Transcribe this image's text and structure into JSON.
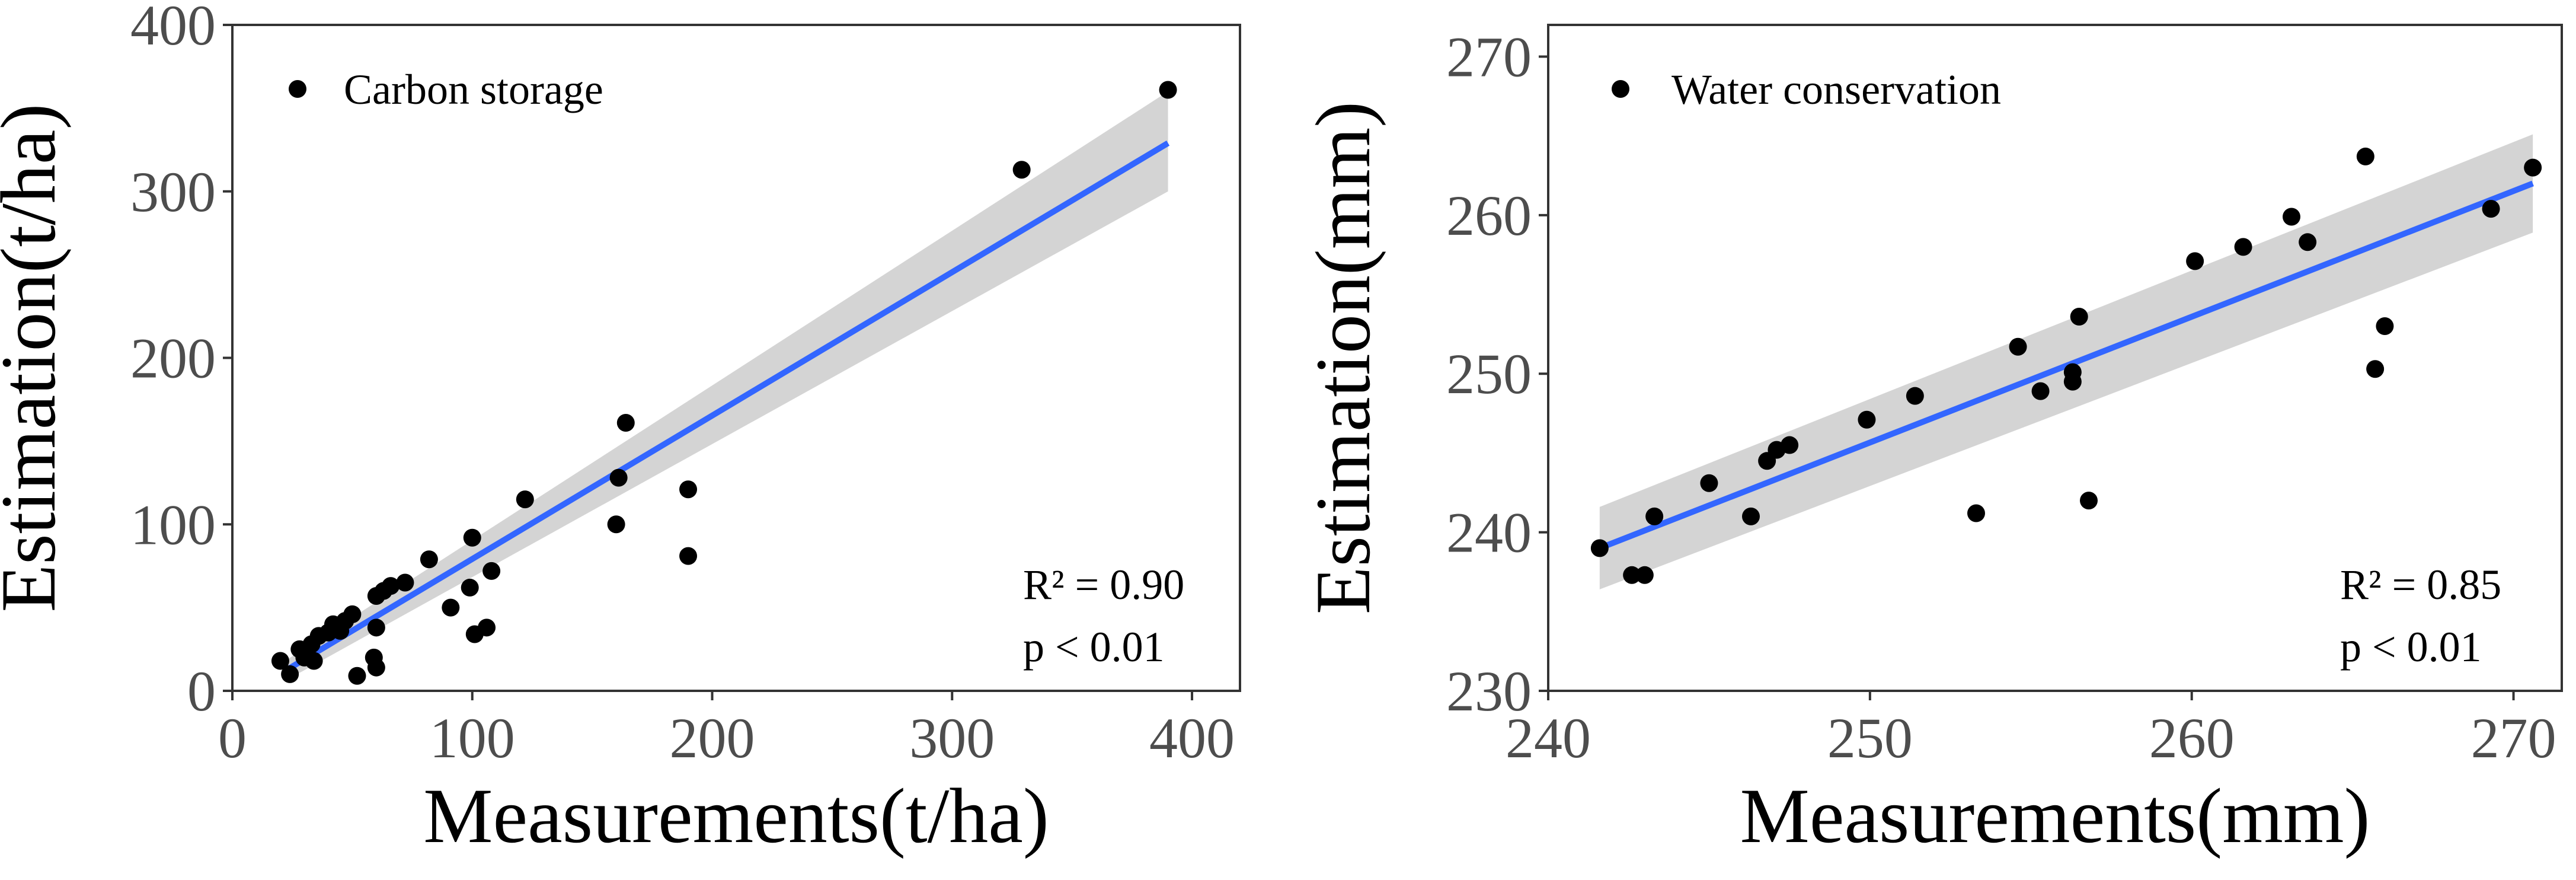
{
  "chart_data": [
    {
      "type": "scatter",
      "xlabel": "Measurements(t/ha)",
      "ylabel": "Estimation(t/ha)",
      "xlim": [
        0,
        420
      ],
      "ylim": [
        0,
        400
      ],
      "xticks": [
        0,
        100,
        200,
        300,
        400
      ],
      "yticks": [
        0,
        100,
        200,
        300,
        400
      ],
      "xtick_labels": [
        "0",
        "100",
        "200",
        "300",
        "400"
      ],
      "ytick_labels": [
        "0",
        "100",
        "200",
        "300",
        "400"
      ],
      "legend": "Carbon storage",
      "legend_position": "top-left",
      "stats": {
        "r2": "R² = 0.90",
        "p": "p < 0.01"
      },
      "fit": {
        "x": [
          22,
          390
        ],
        "y": [
          12,
          329
        ],
        "band_lower": [
          6,
          300
        ],
        "band_upper": [
          18,
          360
        ]
      },
      "colors": {
        "points": "#000000",
        "fit": "#3366ff",
        "band": "#cccccc"
      },
      "points": [
        [
          20,
          18
        ],
        [
          24,
          10
        ],
        [
          28,
          25
        ],
        [
          30,
          20
        ],
        [
          33,
          28
        ],
        [
          34,
          18
        ],
        [
          36,
          33
        ],
        [
          40,
          35
        ],
        [
          42,
          40
        ],
        [
          45,
          36
        ],
        [
          47,
          42
        ],
        [
          50,
          46
        ],
        [
          52,
          9
        ],
        [
          59,
          20
        ],
        [
          60,
          14
        ],
        [
          60,
          38
        ],
        [
          60,
          57
        ],
        [
          63,
          60
        ],
        [
          66,
          63
        ],
        [
          72,
          65
        ],
        [
          82,
          79
        ],
        [
          91,
          50
        ],
        [
          100,
          92
        ],
        [
          99,
          62
        ],
        [
          101,
          34
        ],
        [
          106,
          38
        ],
        [
          108,
          72
        ],
        [
          122,
          115
        ],
        [
          160,
          100
        ],
        [
          161,
          128
        ],
        [
          164,
          161
        ],
        [
          190,
          121
        ],
        [
          190,
          81
        ],
        [
          329,
          313
        ],
        [
          390,
          361
        ]
      ]
    },
    {
      "type": "scatter",
      "xlabel": "Measurements(mm)",
      "ylabel": "Estimation(mm)",
      "xlim": [
        240,
        271.5
      ],
      "ylim": [
        230,
        272
      ],
      "xticks": [
        240,
        250,
        260,
        270
      ],
      "yticks": [
        230,
        240,
        250,
        260,
        270
      ],
      "xtick_labels": [
        "240",
        "250",
        "260",
        "270"
      ],
      "ytick_labels": [
        "230",
        "240",
        "250",
        "260",
        "270"
      ],
      "legend": "Water conservation",
      "legend_position": "top-left",
      "stats": {
        "r2": "R² = 0.85",
        "p": "p < 0.01"
      },
      "fit": {
        "x": [
          241.6,
          270.6
        ],
        "y": [
          239.0,
          262.0
        ],
        "band_lower": [
          236.4,
          258.9
        ],
        "band_upper": [
          241.6,
          265.1
        ]
      },
      "colors": {
        "points": "#000000",
        "fit": "#3366ff",
        "band": "#cccccc"
      },
      "points": [
        [
          241.6,
          239.0
        ],
        [
          242.6,
          237.3
        ],
        [
          243.0,
          237.3
        ],
        [
          243.3,
          241.0
        ],
        [
          245.0,
          243.1
        ],
        [
          246.3,
          241.0
        ],
        [
          246.8,
          244.5
        ],
        [
          247.1,
          245.2
        ],
        [
          247.5,
          245.5
        ],
        [
          249.9,
          247.1
        ],
        [
          251.4,
          248.6
        ],
        [
          253.3,
          241.2
        ],
        [
          254.6,
          251.7
        ],
        [
          255.3,
          248.9
        ],
        [
          256.3,
          250.1
        ],
        [
          256.3,
          249.5
        ],
        [
          256.5,
          253.6
        ],
        [
          256.8,
          242.0
        ],
        [
          260.1,
          257.1
        ],
        [
          261.6,
          258.0
        ],
        [
          263.1,
          259.9
        ],
        [
          263.6,
          258.3
        ],
        [
          265.4,
          263.7
        ],
        [
          265.7,
          250.3
        ],
        [
          266.0,
          253.0
        ],
        [
          269.3,
          260.4
        ],
        [
          270.6,
          263.0
        ]
      ]
    }
  ]
}
